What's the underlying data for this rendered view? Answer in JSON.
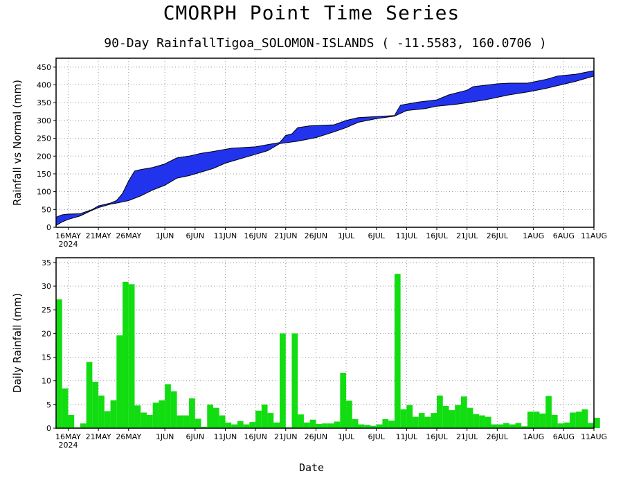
{
  "title": "CMORPH Point Time Series",
  "subtitle": "90-Day RainfallTigoa_SOLOMON-ISLANDS ( -11.5583, 160.0706 )",
  "xlabel": "Date",
  "colors": {
    "band": "#2233ee",
    "bars": "#11dd11",
    "grid": "#999999"
  },
  "chart_data": [
    {
      "type": "area",
      "ylabel": "Rainfall vs Normal (mm)",
      "ylim": [
        0,
        475
      ],
      "yticks": [
        0,
        50,
        100,
        150,
        200,
        250,
        300,
        350,
        400,
        450
      ],
      "xlim": [
        "2024-05-14",
        "2024-08-11"
      ],
      "xticks": [
        {
          "date": "2024-05-16",
          "label": "16MAY",
          "year": "2024"
        },
        {
          "date": "2024-05-21",
          "label": "21MAY"
        },
        {
          "date": "2024-05-26",
          "label": "26MAY"
        },
        {
          "date": "2024-06-01",
          "label": "1JUN"
        },
        {
          "date": "2024-06-06",
          "label": "6JUN"
        },
        {
          "date": "2024-06-11",
          "label": "11JUN"
        },
        {
          "date": "2024-06-16",
          "label": "16JUN"
        },
        {
          "date": "2024-06-21",
          "label": "21JUN"
        },
        {
          "date": "2024-06-26",
          "label": "26JUN"
        },
        {
          "date": "2024-07-01",
          "label": "1JUL"
        },
        {
          "date": "2024-07-06",
          "label": "6JUL"
        },
        {
          "date": "2024-07-11",
          "label": "11JUL"
        },
        {
          "date": "2024-07-16",
          "label": "16JUL"
        },
        {
          "date": "2024-07-21",
          "label": "21JUL"
        },
        {
          "date": "2024-07-26",
          "label": "26JUL"
        },
        {
          "date": "2024-08-01",
          "label": "1AUG"
        },
        {
          "date": "2024-08-06",
          "label": "6AUG"
        },
        {
          "date": "2024-08-11",
          "label": "11AUG"
        }
      ],
      "grid": true,
      "upper": [
        [
          "2024-05-14",
          28
        ],
        [
          "2024-05-15",
          35
        ],
        [
          "2024-05-16",
          37
        ],
        [
          "2024-05-18",
          38
        ],
        [
          "2024-05-20",
          50
        ],
        [
          "2024-05-21",
          60
        ],
        [
          "2024-05-23",
          68
        ],
        [
          "2024-05-24",
          75
        ],
        [
          "2024-05-25",
          95
        ],
        [
          "2024-05-26",
          130
        ],
        [
          "2024-05-27",
          158
        ],
        [
          "2024-05-28",
          162
        ],
        [
          "2024-05-30",
          168
        ],
        [
          "2024-06-01",
          178
        ],
        [
          "2024-06-03",
          195
        ],
        [
          "2024-06-05",
          200
        ],
        [
          "2024-06-07",
          208
        ],
        [
          "2024-06-09",
          213
        ],
        [
          "2024-06-12",
          222
        ],
        [
          "2024-06-16",
          226
        ],
        [
          "2024-06-18",
          232
        ],
        [
          "2024-06-20",
          238
        ],
        [
          "2024-06-21",
          258
        ],
        [
          "2024-06-22",
          262
        ],
        [
          "2024-06-23",
          280
        ],
        [
          "2024-06-25",
          285
        ],
        [
          "2024-06-29",
          288
        ],
        [
          "2024-07-01",
          300
        ],
        [
          "2024-07-03",
          308
        ],
        [
          "2024-07-07",
          312
        ],
        [
          "2024-07-09",
          314
        ],
        [
          "2024-07-10",
          343
        ],
        [
          "2024-07-13",
          352
        ],
        [
          "2024-07-16",
          358
        ],
        [
          "2024-07-18",
          372
        ],
        [
          "2024-07-21",
          385
        ],
        [
          "2024-07-22",
          395
        ],
        [
          "2024-07-26",
          403
        ],
        [
          "2024-07-28",
          405
        ],
        [
          "2024-07-31",
          405
        ],
        [
          "2024-08-03",
          415
        ],
        [
          "2024-08-05",
          425
        ],
        [
          "2024-08-08",
          430
        ],
        [
          "2024-08-11",
          440
        ]
      ],
      "lower": [
        [
          "2024-05-14",
          5
        ],
        [
          "2024-05-15",
          15
        ],
        [
          "2024-05-16",
          22
        ],
        [
          "2024-05-18",
          32
        ],
        [
          "2024-05-20",
          48
        ],
        [
          "2024-05-21",
          55
        ],
        [
          "2024-05-23",
          65
        ],
        [
          "2024-05-24",
          68
        ],
        [
          "2024-05-26",
          75
        ],
        [
          "2024-05-28",
          88
        ],
        [
          "2024-05-30",
          105
        ],
        [
          "2024-06-01",
          118
        ],
        [
          "2024-06-03",
          138
        ],
        [
          "2024-06-05",
          145
        ],
        [
          "2024-06-07",
          155
        ],
        [
          "2024-06-09",
          165
        ],
        [
          "2024-06-11",
          180
        ],
        [
          "2024-06-13",
          190
        ],
        [
          "2024-06-16",
          205
        ],
        [
          "2024-06-18",
          215
        ],
        [
          "2024-06-20",
          235
        ],
        [
          "2024-06-23",
          242
        ],
        [
          "2024-06-26",
          252
        ],
        [
          "2024-06-29",
          268
        ],
        [
          "2024-07-01",
          280
        ],
        [
          "2024-07-03",
          295
        ],
        [
          "2024-07-06",
          305
        ],
        [
          "2024-07-09",
          312
        ],
        [
          "2024-07-11",
          328
        ],
        [
          "2024-07-14",
          333
        ],
        [
          "2024-07-16",
          340
        ],
        [
          "2024-07-19",
          345
        ],
        [
          "2024-07-21",
          350
        ],
        [
          "2024-07-24",
          358
        ],
        [
          "2024-07-26",
          365
        ],
        [
          "2024-07-28",
          372
        ],
        [
          "2024-07-31",
          380
        ],
        [
          "2024-08-03",
          390
        ],
        [
          "2024-08-06",
          402
        ],
        [
          "2024-08-08",
          410
        ],
        [
          "2024-08-11",
          425
        ]
      ]
    },
    {
      "type": "bar",
      "ylabel": "Daily Rainfall (mm)",
      "ylim": [
        0,
        36
      ],
      "yticks": [
        0,
        5,
        10,
        15,
        20,
        25,
        30,
        35
      ],
      "xlim": [
        "2024-05-14",
        "2024-08-11"
      ],
      "grid": true,
      "start_date": "2024-05-14",
      "values": [
        27.2,
        8.4,
        2.8,
        0.2,
        1.0,
        14.0,
        9.8,
        6.9,
        3.6,
        5.9,
        19.6,
        30.9,
        30.4,
        4.8,
        3.3,
        2.8,
        5.4,
        5.9,
        9.3,
        7.8,
        2.7,
        2.7,
        6.3,
        2.0,
        0.3,
        5.0,
        4.3,
        2.7,
        1.2,
        0.8,
        1.5,
        0.8,
        1.3,
        3.7,
        5.0,
        3.2,
        1.2,
        20.0,
        0.2,
        20.0,
        2.9,
        1.2,
        1.8,
        0.9,
        1.0,
        1.0,
        1.4,
        11.7,
        5.8,
        1.9,
        0.8,
        0.7,
        0.5,
        0.8,
        1.9,
        1.6,
        32.6,
        4.0,
        4.9,
        2.4,
        3.2,
        2.4,
        3.2,
        6.9,
        4.7,
        3.8,
        4.9,
        6.7,
        4.3,
        3.0,
        2.7,
        2.4,
        0.8,
        0.8,
        1.1,
        0.8,
        1.1,
        0.4,
        3.5,
        3.5,
        3.1,
        6.8,
        2.8,
        1.0,
        1.2,
        3.3,
        3.5,
        4.0,
        1.1,
        2.2
      ]
    }
  ]
}
